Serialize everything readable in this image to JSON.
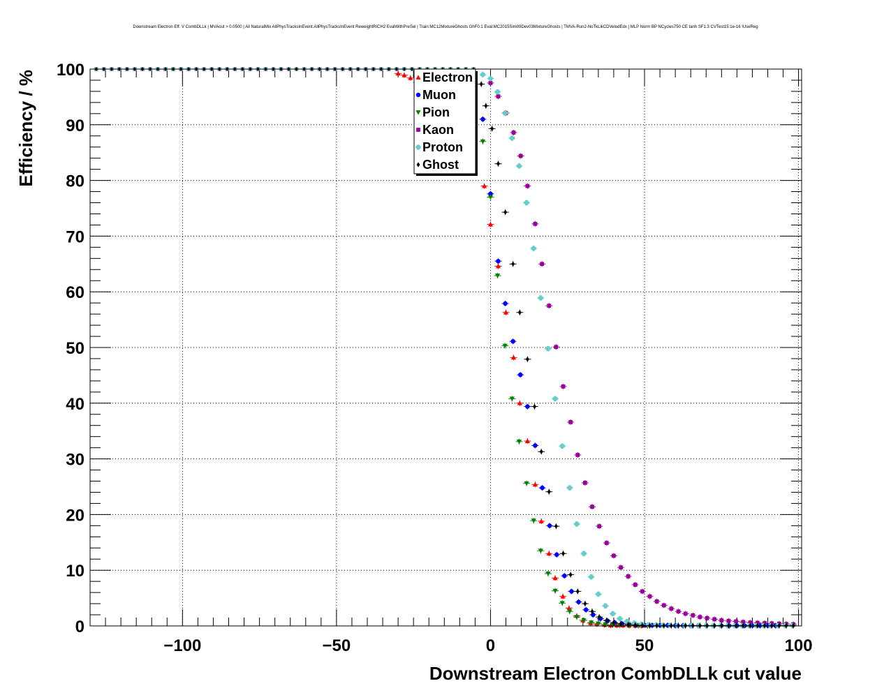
{
  "chart_data": {
    "type": "scatter",
    "title": "Downstream Electron Eff. V CombDLLk | MVAout > 0.0500 | All NaturalMix AllPhysTracksInEvent:AllPhysTracksInEvent ReweightRICH2 EvalWithPreSel | Train:MC12MixtureGhosts GhF0.1 Eval:MC2015Sim09Dev03MixtureGhosts | TMVA-Run2-NoTkLikCDVelodEdx | MLP Norm BP NCycles750 CE tanh SF1.3 CVTest15:1e-16 !UseReg",
    "xlabel": "Downstream Electron CombDLLk cut value",
    "ylabel": "Efficiency / %",
    "xlim": [
      -130,
      101
    ],
    "ylim": [
      0,
      100
    ],
    "xticks": [
      -100,
      -50,
      0,
      50,
      100
    ],
    "xtick_labels": [
      "−100",
      "−50",
      "0",
      "50",
      "100"
    ],
    "yticks": [
      0,
      10,
      20,
      30,
      40,
      50,
      60,
      70,
      80,
      90,
      100
    ],
    "ytick_labels": [
      "0",
      "10",
      "20",
      "30",
      "40",
      "50",
      "60",
      "70",
      "80",
      "90",
      "100"
    ],
    "grid": true,
    "legend_position": "top-center",
    "series": [
      {
        "name": "Electron",
        "color": "#ff0000",
        "marker": "triangle-up",
        "points": [
          [
            -30,
            99.2
          ],
          [
            -28,
            98.9
          ],
          [
            -26,
            98.4
          ],
          [
            -24,
            97.6
          ],
          [
            -22,
            96.6
          ],
          [
            -20,
            95.5
          ],
          [
            -18,
            94.0
          ],
          [
            -16,
            92.5
          ],
          [
            -14,
            90.5
          ],
          [
            -12,
            88.5
          ],
          [
            -10,
            86.5
          ],
          [
            -8,
            85.0
          ],
          [
            -6,
            83.5
          ],
          [
            -2,
            79.0
          ],
          [
            0,
            72.1
          ],
          [
            2.5,
            64.6
          ],
          [
            5,
            56.3
          ],
          [
            7.5,
            48.2
          ],
          [
            9.5,
            40.0
          ],
          [
            12,
            33.2
          ],
          [
            14.5,
            25.4
          ],
          [
            16.5,
            18.8
          ],
          [
            19,
            13.0
          ],
          [
            21,
            8.6
          ],
          [
            23.5,
            5.3
          ],
          [
            25.5,
            3.2
          ],
          [
            28,
            1.8
          ],
          [
            30,
            1.0
          ],
          [
            32.5,
            0.5
          ],
          [
            34.5,
            0.3
          ],
          [
            37,
            0.2
          ],
          [
            39,
            0.1
          ],
          [
            41,
            0.1
          ],
          [
            43,
            0.1
          ],
          [
            45,
            0.05
          ],
          [
            47,
            0.05
          ],
          [
            49,
            0.05
          ],
          [
            51,
            0.05
          ]
        ]
      },
      {
        "name": "Muon",
        "color": "#0000ff",
        "marker": "circle",
        "points": [
          [
            -2.5,
            91.0
          ],
          [
            0,
            77.6
          ],
          [
            2.5,
            65.5
          ],
          [
            4.8,
            57.9
          ],
          [
            7.3,
            51.1
          ],
          [
            9.7,
            45.1
          ],
          [
            12,
            39.4
          ],
          [
            14.5,
            32.4
          ],
          [
            16.8,
            24.8
          ],
          [
            19.2,
            18.0
          ],
          [
            21.5,
            12.8
          ],
          [
            24,
            9.0
          ],
          [
            26.3,
            6.2
          ],
          [
            28.6,
            4.3
          ],
          [
            31,
            2.9
          ],
          [
            33.3,
            2.0
          ],
          [
            35.7,
            1.3
          ],
          [
            38,
            0.9
          ],
          [
            40.3,
            0.6
          ],
          [
            42.7,
            0.4
          ],
          [
            45,
            0.3
          ],
          [
            47.3,
            0.2
          ],
          [
            50,
            0.15
          ],
          [
            52.5,
            0.1
          ],
          [
            55,
            0.1
          ],
          [
            57.5,
            0.1
          ],
          [
            60,
            0.05
          ],
          [
            62.5,
            0.05
          ],
          [
            65,
            0.05
          ],
          [
            67.5,
            0.05
          ],
          [
            70,
            0.05
          ],
          [
            72.5,
            0.05
          ],
          [
            75,
            0.05
          ],
          [
            77.5,
            0.05
          ],
          [
            80,
            0.05
          ],
          [
            82.5,
            0.05
          ],
          [
            85,
            0.05
          ],
          [
            87.5,
            0.05
          ],
          [
            90,
            0.05
          ],
          [
            92.5,
            0.05
          ]
        ]
      },
      {
        "name": "Pion",
        "color": "#008000",
        "marker": "triangle-down",
        "points": [
          [
            -2.5,
            87.0
          ],
          [
            0,
            77.0
          ],
          [
            2.3,
            62.9
          ],
          [
            4.7,
            50.3
          ],
          [
            7,
            40.8
          ],
          [
            9.3,
            33.1
          ],
          [
            11.7,
            25.6
          ],
          [
            14,
            18.9
          ],
          [
            16.3,
            13.5
          ],
          [
            18.7,
            9.4
          ],
          [
            21,
            6.3
          ],
          [
            23.3,
            4.1
          ],
          [
            25.7,
            2.6
          ],
          [
            28,
            1.6
          ],
          [
            30.3,
            1.0
          ],
          [
            32.7,
            0.6
          ],
          [
            35,
            0.4
          ],
          [
            37.3,
            0.25
          ],
          [
            39.7,
            0.15
          ],
          [
            42,
            0.1
          ],
          [
            45,
            0.05
          ],
          [
            48,
            0.05
          ],
          [
            51,
            0.05
          ],
          [
            54,
            0.05
          ]
        ]
      },
      {
        "name": "Kaon",
        "color": "#990099",
        "marker": "square",
        "points": [
          [
            0,
            97.5
          ],
          [
            2.5,
            95.1
          ],
          [
            5,
            92.1
          ],
          [
            7.5,
            88.6
          ],
          [
            9.8,
            84.4
          ],
          [
            12,
            79.0
          ],
          [
            14.5,
            72.2
          ],
          [
            16.7,
            65.0
          ],
          [
            19,
            57.5
          ],
          [
            21.3,
            50.1
          ],
          [
            23.6,
            43.0
          ],
          [
            26,
            36.6
          ],
          [
            28.3,
            30.7
          ],
          [
            30.7,
            25.7
          ],
          [
            33,
            21.4
          ],
          [
            35.3,
            17.9
          ],
          [
            37.7,
            14.9
          ],
          [
            40,
            12.6
          ],
          [
            42.3,
            10.5
          ],
          [
            44.7,
            8.9
          ],
          [
            47,
            7.4
          ],
          [
            49.3,
            6.2
          ],
          [
            51.7,
            5.3
          ],
          [
            54,
            4.4
          ],
          [
            56.3,
            3.7
          ],
          [
            58.7,
            3.1
          ],
          [
            61,
            2.6
          ],
          [
            63.3,
            2.2
          ],
          [
            65.7,
            1.9
          ],
          [
            68,
            1.6
          ],
          [
            70.3,
            1.4
          ],
          [
            72.7,
            1.2
          ],
          [
            75,
            1.0
          ],
          [
            77.3,
            0.9
          ],
          [
            79.7,
            0.8
          ],
          [
            82,
            0.7
          ],
          [
            84.3,
            0.6
          ],
          [
            86.7,
            0.55
          ],
          [
            89,
            0.5
          ],
          [
            91.3,
            0.45
          ],
          [
            93.7,
            0.4
          ],
          [
            96,
            0.35
          ],
          [
            98.3,
            0.3
          ]
        ]
      },
      {
        "name": "Proton",
        "color": "#66cccc",
        "marker": "cross",
        "points": [
          [
            -2.5,
            99.0
          ],
          [
            0,
            98.3
          ],
          [
            2.3,
            95.9
          ],
          [
            4.7,
            92.1
          ],
          [
            7,
            87.6
          ],
          [
            9.3,
            82.6
          ],
          [
            11.7,
            76.0
          ],
          [
            14,
            67.8
          ],
          [
            16.3,
            58.9
          ],
          [
            18.7,
            49.8
          ],
          [
            21,
            40.8
          ],
          [
            23.3,
            32.3
          ],
          [
            25.7,
            24.8
          ],
          [
            28,
            18.3
          ],
          [
            30.3,
            13.0
          ],
          [
            32.7,
            8.8
          ],
          [
            35,
            5.7
          ],
          [
            37.3,
            3.6
          ],
          [
            39.7,
            2.2
          ],
          [
            42,
            1.3
          ],
          [
            44.3,
            0.8
          ],
          [
            46.7,
            0.5
          ],
          [
            49,
            0.3
          ],
          [
            51.3,
            0.2
          ],
          [
            53.7,
            0.15
          ],
          [
            56,
            0.1
          ],
          [
            58.3,
            0.1
          ],
          [
            60.7,
            0.05
          ],
          [
            63,
            0.05
          ],
          [
            65.3,
            0.05
          ],
          [
            67.7,
            0.05
          ],
          [
            70,
            0.05
          ],
          [
            72.3,
            0.05
          ],
          [
            74.7,
            0.05
          ],
          [
            77,
            0.05
          ],
          [
            79.3,
            0.05
          ],
          [
            81.7,
            0.05
          ],
          [
            84,
            0.05
          ],
          [
            86.3,
            0.05
          ],
          [
            88.7,
            0.05
          ],
          [
            91,
            0.05
          ],
          [
            93.3,
            0.05
          ],
          [
            95.7,
            0.05
          ],
          [
            98,
            0.05
          ]
        ]
      },
      {
        "name": "Ghost",
        "color": "#000000",
        "marker": "diamond",
        "points": [
          [
            -3,
            97.3
          ],
          [
            -1.5,
            93.4
          ],
          [
            0.5,
            89.3
          ],
          [
            2.5,
            83.0
          ],
          [
            4.8,
            74.3
          ],
          [
            7.3,
            65.0
          ],
          [
            9.5,
            56.3
          ],
          [
            12,
            47.9
          ],
          [
            14.3,
            39.4
          ],
          [
            16.5,
            31.3
          ],
          [
            19,
            24.1
          ],
          [
            21.3,
            17.9
          ],
          [
            23.6,
            13.0
          ],
          [
            26,
            9.2
          ],
          [
            28.3,
            6.2
          ],
          [
            30.7,
            4.0
          ],
          [
            33,
            2.6
          ],
          [
            35.3,
            1.6
          ],
          [
            37.7,
            1.0
          ],
          [
            40,
            0.6
          ],
          [
            42.3,
            0.4
          ],
          [
            44.7,
            0.25
          ],
          [
            47,
            0.15
          ],
          [
            49.3,
            0.1
          ],
          [
            51.7,
            0.05
          ],
          [
            54,
            0.05
          ],
          [
            56.3,
            0.05
          ],
          [
            58.7,
            0.05
          ],
          [
            61,
            0.05
          ],
          [
            63.3,
            0.05
          ],
          [
            65.7,
            0.05
          ],
          [
            68,
            0.05
          ],
          [
            70.3,
            0.05
          ],
          [
            72.7,
            0.05
          ],
          [
            75,
            0.05
          ],
          [
            77.3,
            0.05
          ],
          [
            79.7,
            0.05
          ],
          [
            82,
            0.05
          ],
          [
            84.3,
            0.05
          ],
          [
            86.7,
            0.05
          ],
          [
            89,
            0.05
          ],
          [
            91.3,
            0.05
          ],
          [
            93.7,
            0.05
          ],
          [
            96,
            0.05
          ],
          [
            98.3,
            0.05
          ]
        ]
      }
    ]
  }
}
